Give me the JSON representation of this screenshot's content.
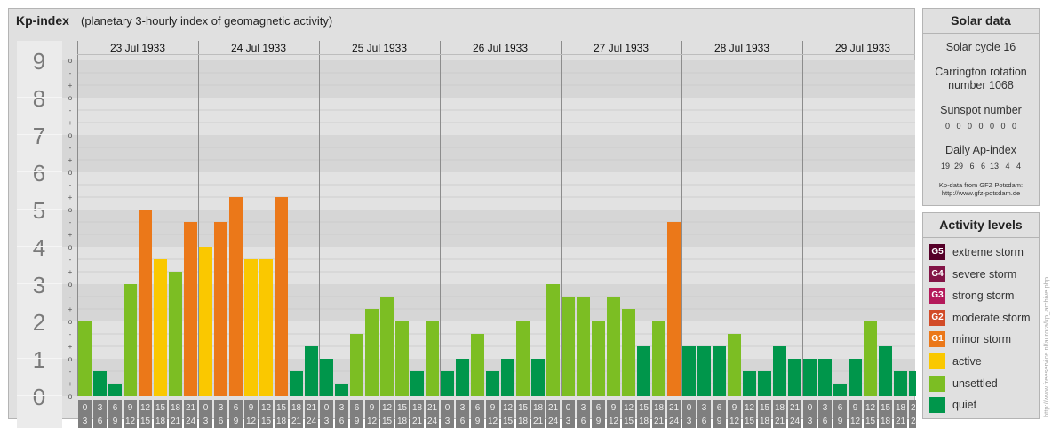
{
  "header": {
    "title": "Kp-index",
    "subtitle": "(planetary 3-hourly index of geomagnetic activity)"
  },
  "chart_data": {
    "type": "bar",
    "y_ticks": [
      "0",
      "1",
      "2",
      "3",
      "4",
      "5",
      "6",
      "7",
      "8",
      "9"
    ],
    "thirds_markers": [
      "-",
      "o",
      "+"
    ],
    "ylim": [
      0,
      9
    ],
    "days": [
      "23 Jul 1933",
      "24 Jul 1933",
      "25 Jul 1933",
      "26 Jul 1933",
      "27 Jul 1933",
      "28 Jul 1933",
      "29 Jul 1933"
    ],
    "interval_tops": [
      "0",
      "3",
      "6",
      "9",
      "12",
      "15",
      "18",
      "21"
    ],
    "interval_bottoms": [
      "3",
      "6",
      "9",
      "12",
      "15",
      "18",
      "21",
      "24"
    ],
    "values": [
      [
        2.0,
        0.667,
        0.333,
        3.0,
        5.0,
        3.667,
        3.333,
        4.667
      ],
      [
        4.0,
        4.667,
        5.333,
        3.667,
        3.667,
        5.333,
        0.667,
        1.333
      ],
      [
        1.0,
        0.333,
        1.667,
        2.333,
        2.667,
        2.0,
        0.667,
        2.0
      ],
      [
        0.667,
        1.0,
        1.667,
        0.667,
        1.0,
        2.0,
        1.0,
        3.0
      ],
      [
        2.667,
        2.667,
        2.0,
        2.667,
        2.333,
        1.333,
        2.0,
        4.667
      ],
      [
        1.333,
        1.333,
        1.333,
        1.667,
        0.667,
        0.667,
        1.333,
        1.0
      ],
      [
        1.0,
        1.0,
        0.333,
        1.0,
        2.0,
        1.333,
        0.667,
        0.667
      ]
    ]
  },
  "colors": {
    "quiet": "#00964b",
    "unsettled": "#7cbe23",
    "active": "#fac800",
    "minor_storm": "#eb7819",
    "moderate_storm": "#d24b28",
    "strong_storm": "#b4195a",
    "severe_storm": "#821446",
    "extreme_storm": "#550028"
  },
  "solar": {
    "title": "Solar data",
    "cycle": "Solar cycle 16",
    "carrington_line1": "Carrington rotation",
    "carrington_line2": "number 1068",
    "sunspot_label": "Sunspot number",
    "sunspot_values": "0   0   0   0   0   0   0",
    "ap_label": "Daily Ap-index",
    "ap_values": "19  29   6   6  13   4   4",
    "credit_line1": "Kp-data from GFZ Potsdam:",
    "credit_line2": "http://www.gfz-potsdam.de"
  },
  "activity": {
    "title": "Activity levels",
    "levels": [
      {
        "code": "G5",
        "label": "extreme storm",
        "color": "#550028"
      },
      {
        "code": "G4",
        "label": "severe storm",
        "color": "#821446"
      },
      {
        "code": "G3",
        "label": "strong storm",
        "color": "#b4195a"
      },
      {
        "code": "G2",
        "label": "moderate storm",
        "color": "#d24b28"
      },
      {
        "code": "G1",
        "label": "minor storm",
        "color": "#eb7819"
      },
      {
        "code": "",
        "label": "active",
        "color": "#fac800"
      },
      {
        "code": "",
        "label": "unsettled",
        "color": "#7cbe23"
      },
      {
        "code": "",
        "label": "quiet",
        "color": "#00964b"
      }
    ]
  },
  "watermark": "http://www.freeservice.nl/aurora/kp_archive.php"
}
